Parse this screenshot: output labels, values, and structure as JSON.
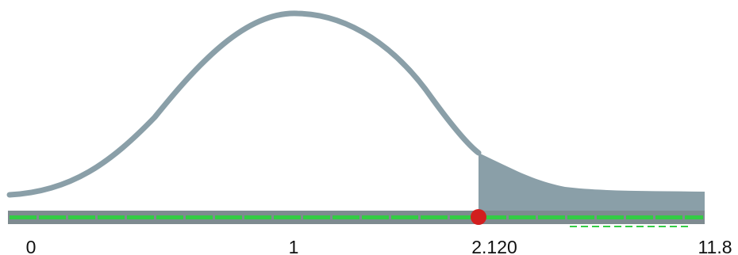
{
  "chart_data": {
    "type": "area",
    "x_ticks": [
      "0",
      "1",
      "2.120",
      "11.8"
    ],
    "x_tick_values": [
      0,
      1,
      2.12,
      11.8
    ],
    "critical_value": 2.12,
    "shaded_region": "right-tail",
    "marker": {
      "x": 2.12,
      "color": "#d21e1e"
    },
    "colors": {
      "curve": "#8a9fa8",
      "shade": "#8a9fa8",
      "axis_bar": "#7e8b90",
      "axis_stripe": "#33cc44",
      "marker": "#d21e1e"
    }
  }
}
